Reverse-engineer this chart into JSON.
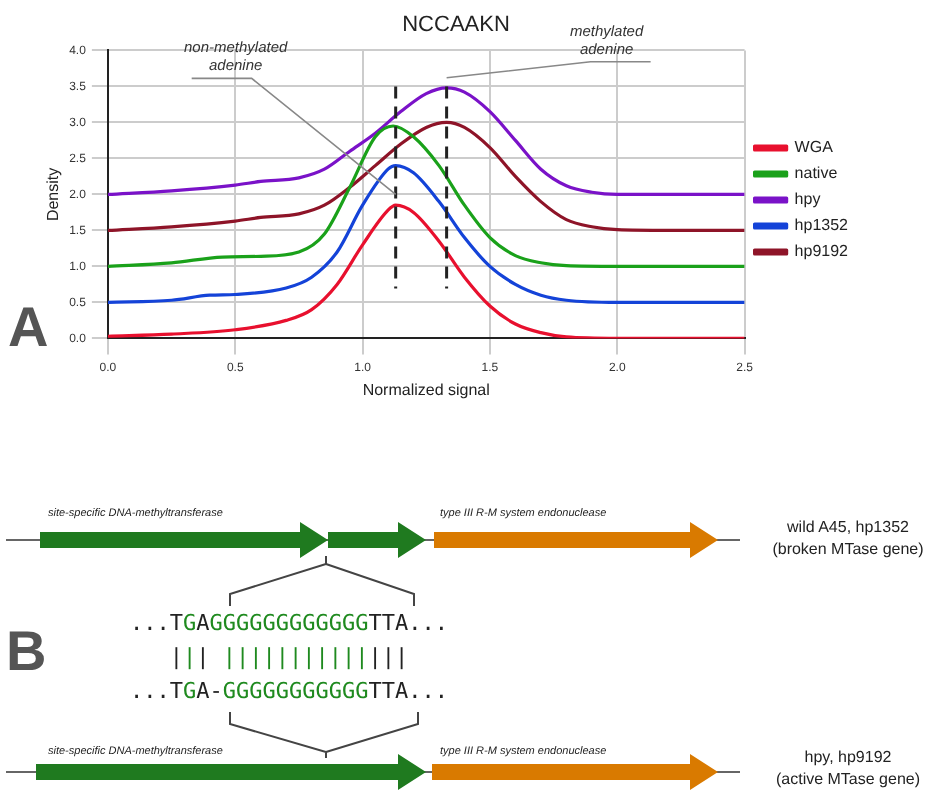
{
  "chart_data": {
    "type": "line",
    "title": "NCCAAKN",
    "xlabel": "Normalized signal",
    "ylabel": "Density",
    "xlim": [
      0,
      2.5
    ],
    "xticks": [
      {
        "value": 0,
        "label": "0.0"
      },
      {
        "value": 0.5,
        "label": "0.5"
      },
      {
        "value": 1,
        "label": "1.0"
      },
      {
        "value": 1.5,
        "label": "1.5"
      },
      {
        "value": 2,
        "label": "2.0"
      },
      {
        "value": 2.5,
        "label": "2.5"
      }
    ],
    "ylim": [
      0,
      4
    ],
    "yticks": [
      {
        "value": 0,
        "label": "0.0"
      },
      {
        "value": 0.5,
        "label": "0.5"
      },
      {
        "value": 1,
        "label": "1.0"
      },
      {
        "value": 1.5,
        "label": "1.5"
      },
      {
        "value": 2,
        "label": "2.0"
      },
      {
        "value": 2.5,
        "label": "2.5"
      },
      {
        "value": 3,
        "label": "3.0"
      },
      {
        "value": 3.5,
        "label": "3.5"
      },
      {
        "value": 4,
        "label": "4.0"
      }
    ],
    "grid": true,
    "legend": "right",
    "marker": "none",
    "line_style": "solid",
    "series": [
      {
        "name": "WGA",
        "color": "#e8102e",
        "x": [
          0,
          0.25,
          0.5,
          0.7,
          0.8,
          0.9,
          1.0,
          1.1,
          1.13,
          1.2,
          1.3,
          1.4,
          1.5,
          1.6,
          1.7,
          1.8,
          2.0,
          2.5
        ],
        "values": [
          0.03,
          0.06,
          0.12,
          0.25,
          0.4,
          0.75,
          1.3,
          1.78,
          1.85,
          1.75,
          1.35,
          0.85,
          0.45,
          0.2,
          0.08,
          0.02,
          0,
          0
        ]
      },
      {
        "name": "native",
        "color": "#1aa11a",
        "x": [
          0,
          0.25,
          0.45,
          0.6,
          0.75,
          0.85,
          0.95,
          1.05,
          1.12,
          1.2,
          1.3,
          1.4,
          1.5,
          1.6,
          1.7,
          1.8,
          2.0,
          2.5
        ],
        "values": [
          1.0,
          1.05,
          1.13,
          1.14,
          1.2,
          1.45,
          2.1,
          2.8,
          2.95,
          2.8,
          2.4,
          1.85,
          1.4,
          1.15,
          1.05,
          1.01,
          1.0,
          1.0
        ]
      },
      {
        "name": "hpy",
        "color": "#7a12c8",
        "x": [
          0,
          0.25,
          0.5,
          0.6,
          0.75,
          0.85,
          0.95,
          1.05,
          1.15,
          1.25,
          1.33,
          1.4,
          1.5,
          1.6,
          1.7,
          1.8,
          1.9,
          2.0,
          2.5
        ],
        "values": [
          2.0,
          2.05,
          2.13,
          2.18,
          2.23,
          2.35,
          2.6,
          2.85,
          3.15,
          3.4,
          3.48,
          3.42,
          3.15,
          2.75,
          2.35,
          2.12,
          2.03,
          2.0,
          2.0
        ]
      },
      {
        "name": "hp1352",
        "color": "#1443d8",
        "x": [
          0,
          0.25,
          0.4,
          0.5,
          0.7,
          0.8,
          0.9,
          1.0,
          1.1,
          1.13,
          1.2,
          1.3,
          1.4,
          1.5,
          1.6,
          1.7,
          1.8,
          2.0,
          2.5
        ],
        "values": [
          0.5,
          0.53,
          0.6,
          0.61,
          0.7,
          0.85,
          1.2,
          1.85,
          2.35,
          2.4,
          2.3,
          1.9,
          1.4,
          1.0,
          0.75,
          0.6,
          0.53,
          0.5,
          0.5
        ]
      },
      {
        "name": "hp9192",
        "color": "#8e1428",
        "x": [
          0,
          0.25,
          0.5,
          0.6,
          0.75,
          0.85,
          0.95,
          1.05,
          1.15,
          1.25,
          1.33,
          1.4,
          1.5,
          1.6,
          1.7,
          1.8,
          1.9,
          2.0,
          2.2,
          2.5
        ],
        "values": [
          1.5,
          1.55,
          1.63,
          1.68,
          1.73,
          1.85,
          2.1,
          2.4,
          2.7,
          2.93,
          3.0,
          2.93,
          2.65,
          2.25,
          1.9,
          1.65,
          1.55,
          1.51,
          1.5,
          1.5
        ]
      }
    ],
    "ref_lines": [
      {
        "axis": "x",
        "value": 1.13,
        "color": "#222222",
        "line_style": "dashed"
      },
      {
        "axis": "x",
        "value": 1.33,
        "color": "#222222",
        "line_style": "dashed"
      }
    ],
    "annotations": [
      {
        "text": "non-methylated adenine",
        "x": 1.13,
        "y": 2.0
      },
      {
        "text": "methylated adenine",
        "x": 1.33,
        "y": 3.62
      },
      "A",
      "B",
      "site-specific DNA-methyltransferase",
      "type III R-M system endonuclease",
      "wild A45, hp1352",
      "(broken MTase gene)",
      "...TGAGGGGGGGGGGGGTTA...",
      "   ||| ||||||||||||||",
      "...TGA-GGGGGGGGGGGTTA...",
      "site-specific DNA-methyltransferase",
      "type III R-M system endonuclease",
      "hpy, hp9192",
      "(active MTase gene)"
    ]
  }
}
